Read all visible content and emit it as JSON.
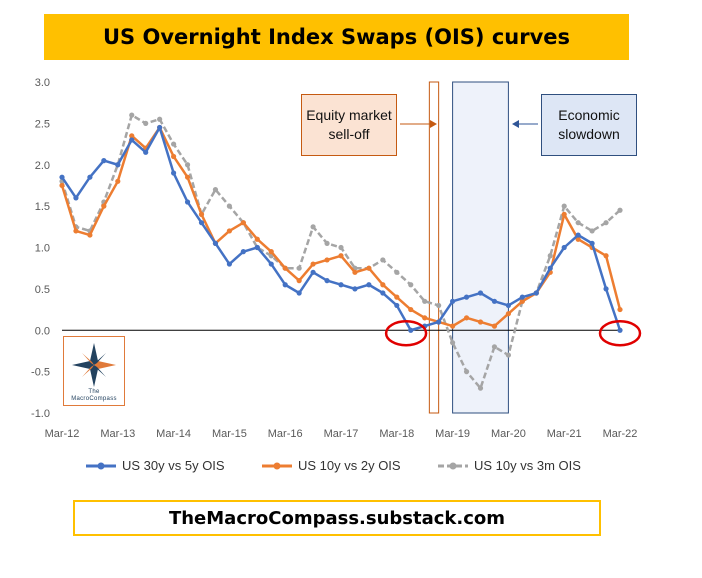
{
  "title": "US Overnight Index Swaps (OIS) curves",
  "footer": "TheMacroCompass.substack.com",
  "annotations": {
    "equity": "Equity market sell-off",
    "econ": "Economic slowdown"
  },
  "logo": {
    "line1": "The",
    "line2": "MacroCompass",
    "icon": "compass-star-icon"
  },
  "colors": {
    "title_bg": "#ffc000",
    "footer_border": "#ffc000",
    "series_30y5y": "#4472c4",
    "series_10y2y": "#ed7d31",
    "series_10y3m": "#a5a5a5",
    "highlight_circle": "#e00000",
    "equity_box_fill": "#fbe3d3",
    "econ_box_fill": "#dde6f5"
  },
  "chart_data": {
    "type": "line",
    "x_tick_labels": [
      "Mar-12",
      "Mar-13",
      "Mar-14",
      "Mar-15",
      "Mar-16",
      "Mar-17",
      "Mar-18",
      "Mar-19",
      "Mar-20",
      "Mar-21",
      "Mar-22"
    ],
    "y_tick_labels": [
      "3.0",
      "2.5",
      "2.0",
      "1.5",
      "1.0",
      "0.5",
      "0.0",
      "-0.5",
      "-1.0"
    ],
    "ylim": [
      -1.0,
      3.0
    ],
    "xlim": [
      "Mar-12",
      "Mar-22"
    ],
    "grid": false,
    "legend_position": "bottom",
    "shaded_periods": [
      {
        "label": "Equity market sell-off",
        "start": "Oct-18",
        "end": "Dec-18",
        "style": "outline"
      },
      {
        "label": "Economic slowdown",
        "start": "Mar-19",
        "end": "Mar-20",
        "style": "fill"
      }
    ],
    "highlight_points": [
      {
        "x": "May-18",
        "y": 0.0
      },
      {
        "x": "Mar-22",
        "y": 0.0
      }
    ],
    "x": [
      "Mar-12",
      "Jun-12",
      "Sep-12",
      "Dec-12",
      "Mar-13",
      "Jun-13",
      "Sep-13",
      "Dec-13",
      "Mar-14",
      "Jun-14",
      "Sep-14",
      "Dec-14",
      "Mar-15",
      "Jun-15",
      "Sep-15",
      "Dec-15",
      "Mar-16",
      "Jun-16",
      "Sep-16",
      "Dec-16",
      "Mar-17",
      "Jun-17",
      "Sep-17",
      "Dec-17",
      "Mar-18",
      "Jun-18",
      "Sep-18",
      "Dec-18",
      "Mar-19",
      "Jun-19",
      "Sep-19",
      "Dec-19",
      "Mar-20",
      "Jun-20",
      "Sep-20",
      "Dec-20",
      "Mar-21",
      "Jun-21",
      "Sep-21",
      "Dec-21",
      "Mar-22"
    ],
    "series": [
      {
        "name": "US 30y vs 5y OIS",
        "style": "solid",
        "values": [
          1.85,
          1.6,
          1.85,
          2.05,
          2.0,
          2.3,
          2.15,
          2.45,
          1.9,
          1.55,
          1.3,
          1.05,
          0.8,
          0.95,
          1.0,
          0.8,
          0.55,
          0.45,
          0.7,
          0.6,
          0.55,
          0.5,
          0.55,
          0.45,
          0.3,
          0.0,
          0.05,
          0.1,
          0.35,
          0.4,
          0.45,
          0.35,
          0.3,
          0.4,
          0.45,
          0.75,
          1.0,
          1.15,
          1.05,
          0.5,
          0.0
        ]
      },
      {
        "name": "US 10y vs 2y OIS",
        "style": "solid",
        "values": [
          1.75,
          1.2,
          1.15,
          1.5,
          1.8,
          2.35,
          2.2,
          2.45,
          2.1,
          1.85,
          1.4,
          1.05,
          1.2,
          1.3,
          1.1,
          0.95,
          0.75,
          0.6,
          0.8,
          0.85,
          0.9,
          0.7,
          0.75,
          0.55,
          0.4,
          0.25,
          0.15,
          0.1,
          0.05,
          0.15,
          0.1,
          0.05,
          0.2,
          0.35,
          0.45,
          0.7,
          1.4,
          1.1,
          1.0,
          0.9,
          0.25
        ]
      },
      {
        "name": "US 10y vs 3m OIS",
        "style": "dashed",
        "values": [
          1.8,
          1.25,
          1.2,
          1.55,
          2.0,
          2.6,
          2.5,
          2.55,
          2.25,
          2.0,
          1.4,
          1.7,
          1.5,
          1.3,
          1.0,
          0.9,
          0.75,
          0.75,
          1.25,
          1.05,
          1.0,
          0.75,
          0.75,
          0.85,
          0.7,
          0.55,
          0.35,
          0.3,
          -0.15,
          -0.5,
          -0.7,
          -0.2,
          -0.3,
          0.35,
          0.45,
          0.9,
          1.5,
          1.3,
          1.2,
          1.3,
          1.45
        ]
      }
    ]
  }
}
